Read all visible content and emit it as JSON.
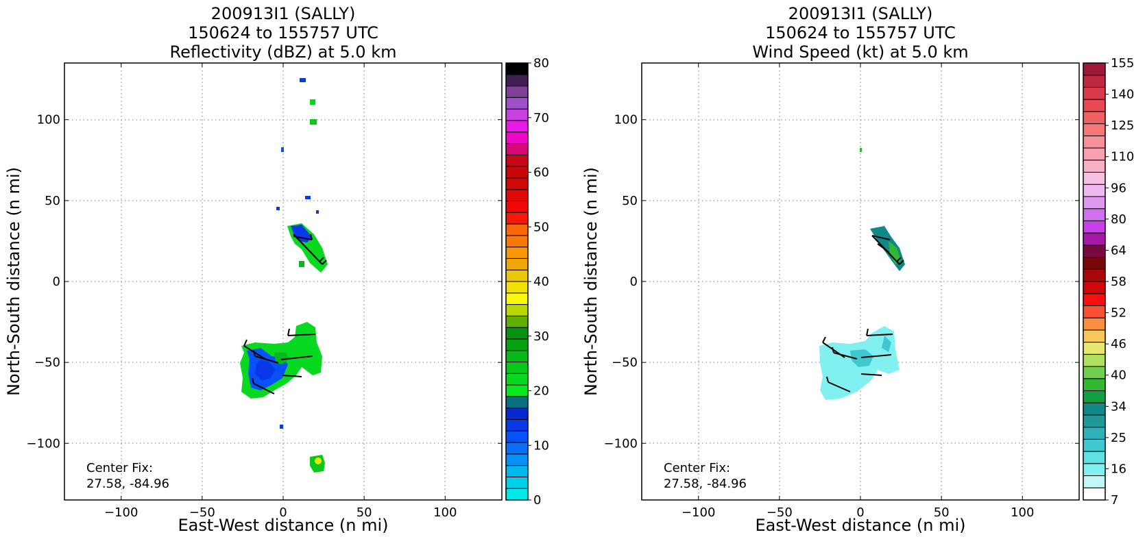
{
  "panels": [
    {
      "title_lines": [
        "200913I1 (SALLY)",
        "150624 to 155757 UTC",
        "Reflectivity (dBZ) at 5.0 km"
      ],
      "xlabel": "East-West distance (n mi)",
      "ylabel": "North-South distance (n mi)",
      "center_fix": [
        "Center Fix:",
        "27.58, -84.96"
      ],
      "colorbar": {
        "ticks": [
          "0",
          "10",
          "20",
          "30",
          "40",
          "50",
          "60",
          "70",
          "80"
        ],
        "colors": [
          "#00e8e8",
          "#00d0e8",
          "#00b8f0",
          "#0890f8",
          "#0870f8",
          "#0850f8",
          "#0838e8",
          "#0828d0",
          "#087080",
          "#08e820",
          "#08d820",
          "#08c818",
          "#08b818",
          "#08a010",
          "#089010",
          "#60b008",
          "#b8d808",
          "#f8f808",
          "#f0e008",
          "#e8c808",
          "#f0a808",
          "#f89808",
          "#f87808",
          "#f86808",
          "#f81808",
          "#f00808",
          "#e00808",
          "#d00808",
          "#c80808",
          "#c80818",
          "#d80878",
          "#f008c8",
          "#e818e8",
          "#c840e0",
          "#a050c8",
          "#804098",
          "#402050",
          "#000000"
        ]
      }
    },
    {
      "title_lines": [
        "200913I1 (SALLY)",
        "150624 to 155757 UTC",
        "Wind Speed (kt) at 5.0 km"
      ],
      "xlabel": "East-West distance (n mi)",
      "ylabel": "North-South distance (n mi)",
      "center_fix": [
        "Center Fix:",
        "27.58, -84.96"
      ],
      "colorbar": {
        "ticks": [
          "7",
          "16",
          "25",
          "34",
          "40",
          "46",
          "52",
          "58",
          "64",
          "80",
          "96",
          "110",
          "125",
          "140",
          "155"
        ],
        "colors": [
          "#ffffff",
          "#c0f8f8",
          "#80f0f0",
          "#60e0e0",
          "#40c8d0",
          "#30b0b8",
          "#209898",
          "#108888",
          "#10a040",
          "#30b830",
          "#70d050",
          "#b0e060",
          "#e8e870",
          "#f8c858",
          "#f89040",
          "#f85030",
          "#f81010",
          "#d00808",
          "#a80808",
          "#780808",
          "#780840",
          "#a818a8",
          "#c840e8",
          "#d070f0",
          "#e098f0",
          "#f0b8f0",
          "#f8c0e0",
          "#f8b0c8",
          "#f8a0b0",
          "#f89098",
          "#f87878",
          "#f06060",
          "#e84850",
          "#d83848",
          "#c02840",
          "#a01838"
        ]
      }
    }
  ],
  "chart_data": [
    {
      "type": "heatmap",
      "title": "200913I1 (SALLY) 150624 to 155757 UTC Reflectivity (dBZ) at 5.0 km",
      "xlabel": "East-West distance (n mi)",
      "ylabel": "North-South distance (n mi)",
      "xlim": [
        -135,
        135
      ],
      "ylim": [
        -135,
        135
      ],
      "xticks": [
        -100,
        -50,
        0,
        50,
        100
      ],
      "yticks": [
        -100,
        -50,
        0,
        50,
        100
      ],
      "grid": true,
      "colorbar_label_values": [
        0,
        10,
        20,
        30,
        40,
        50,
        60,
        70,
        80
      ],
      "colorbar_range": [
        0,
        80
      ],
      "center_fix": "27.58, -84.96"
    },
    {
      "type": "heatmap",
      "title": "200913I1 (SALLY) 150624 to 155757 UTC Wind Speed (kt) at 5.0 km",
      "xlabel": "East-West distance (n mi)",
      "ylabel": "North-South distance (n mi)",
      "xlim": [
        -135,
        135
      ],
      "ylim": [
        -135,
        135
      ],
      "xticks": [
        -100,
        -50,
        0,
        50,
        100
      ],
      "yticks": [
        -100,
        -50,
        0,
        50,
        100
      ],
      "grid": true,
      "colorbar_label_values": [
        7,
        16,
        25,
        34,
        40,
        46,
        52,
        58,
        64,
        80,
        96,
        110,
        125,
        140,
        155
      ],
      "center_fix": "27.58, -84.96"
    }
  ]
}
